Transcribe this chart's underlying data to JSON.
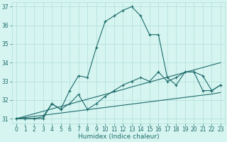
{
  "xlabel": "Humidex (Indice chaleur)",
  "x_values": [
    0,
    1,
    2,
    3,
    4,
    5,
    6,
    7,
    8,
    9,
    10,
    11,
    12,
    13,
    14,
    15,
    16,
    17,
    18,
    19,
    20,
    21,
    22,
    23
  ],
  "line1": [
    31.0,
    31.0,
    31.0,
    31.0,
    31.8,
    31.5,
    32.5,
    33.3,
    33.2,
    34.8,
    36.2,
    36.5,
    36.8,
    37.0,
    36.5,
    35.5,
    35.5,
    33.2,
    32.8,
    33.5,
    33.5,
    33.3,
    32.5,
    32.8
  ],
  "line2": [
    31.0,
    31.0,
    31.0,
    31.1,
    31.8,
    31.5,
    31.8,
    32.3,
    31.5,
    31.8,
    32.2,
    32.5,
    32.8,
    33.0,
    33.2,
    33.0,
    33.5,
    33.0,
    33.2,
    33.5,
    33.5,
    32.5,
    32.5,
    32.8
  ],
  "line3": [
    31.0,
    31.13,
    31.26,
    31.39,
    31.52,
    31.65,
    31.78,
    31.91,
    32.04,
    32.17,
    32.3,
    32.43,
    32.56,
    32.7,
    32.83,
    32.96,
    33.09,
    33.22,
    33.35,
    33.48,
    33.61,
    33.74,
    33.87,
    34.0
  ],
  "line4": [
    31.0,
    31.06,
    31.12,
    31.18,
    31.24,
    31.3,
    31.36,
    31.42,
    31.48,
    31.54,
    31.6,
    31.66,
    31.72,
    31.78,
    31.84,
    31.9,
    31.96,
    32.02,
    32.08,
    32.14,
    32.2,
    32.26,
    32.32,
    32.4
  ],
  "line_color": "#1e6b6b",
  "bg_color": "#d6f5f0",
  "grid_color": "#b0ddd8",
  "ylim": [
    30.75,
    37.25
  ],
  "xlim": [
    -0.5,
    23.5
  ],
  "yticks": [
    31,
    32,
    33,
    34,
    35,
    36,
    37
  ],
  "xticks": [
    0,
    1,
    2,
    3,
    4,
    5,
    6,
    7,
    8,
    9,
    10,
    11,
    12,
    13,
    14,
    15,
    16,
    17,
    18,
    19,
    20,
    21,
    22,
    23
  ],
  "tick_fontsize": 5.5,
  "xlabel_fontsize": 6.5
}
